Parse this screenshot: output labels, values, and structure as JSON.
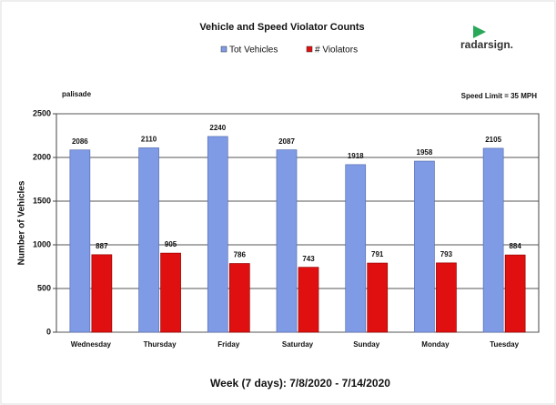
{
  "chart_data": {
    "type": "bar",
    "title": "Vehicle and Speed Violator Counts",
    "subtitle_left": "palisade",
    "subtitle_right": "Speed Limit = 35 MPH",
    "logo": "radarsign.",
    "y_label": "Number of Vehicles",
    "x_label": "Week (7 days): 7/8/2020 - 7/14/2020",
    "categories": [
      "Wednesday",
      "Thursday",
      "Friday",
      "Saturday",
      "Sunday",
      "Monday",
      "Tuesday"
    ],
    "series": [
      {
        "name": "Tot Vehicles",
        "color": "#7f9be6",
        "values": [
          2086,
          2110,
          2240,
          2087,
          1918,
          1958,
          2105
        ]
      },
      {
        "name": "# Violators",
        "color": "#e01010",
        "values": [
          887,
          905,
          786,
          743,
          791,
          793,
          884
        ]
      }
    ],
    "ylim": [
      0,
      2500
    ],
    "yticks": [
      0,
      500,
      1000,
      1500,
      2000,
      2500
    ],
    "grid": true
  }
}
